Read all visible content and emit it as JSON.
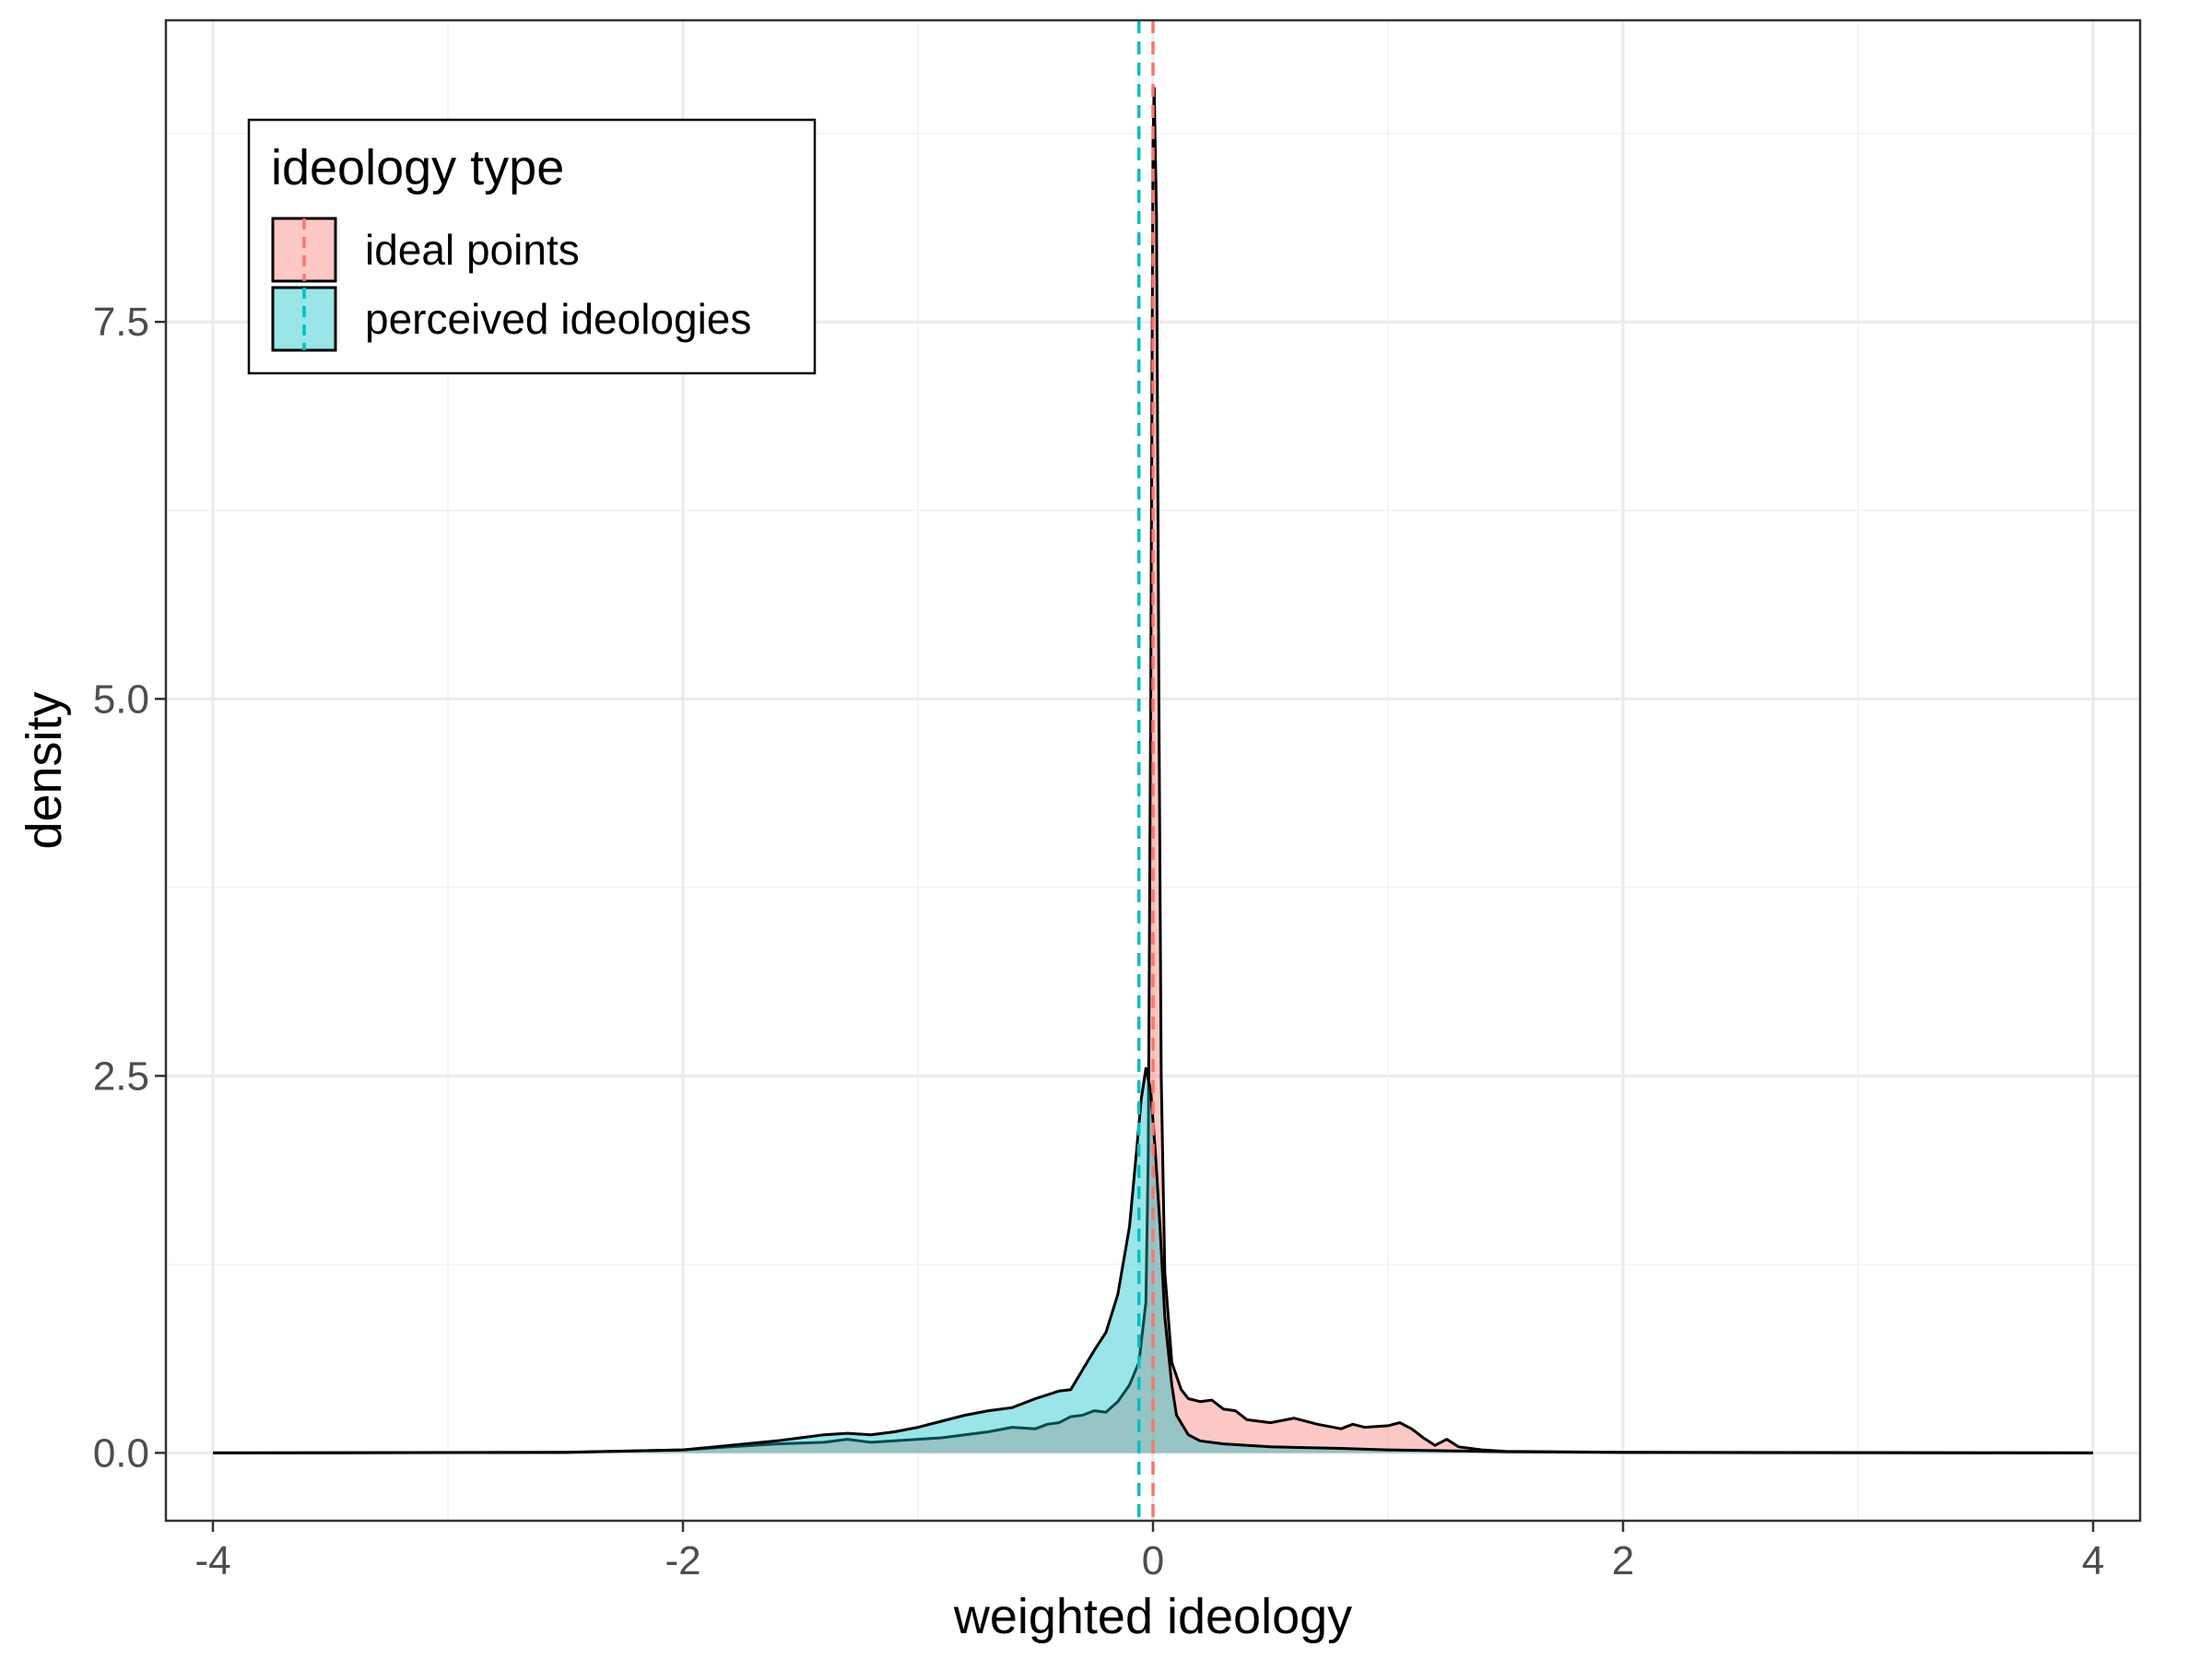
{
  "chart_data": {
    "type": "area",
    "xlabel": "weighted ideology",
    "ylabel": "density",
    "xlim": [
      -4.2,
      4.2
    ],
    "ylim": [
      -0.45,
      9.5
    ],
    "x_ticks": [
      -4,
      -2,
      0,
      2,
      4
    ],
    "x_tick_labels": [
      "-4",
      "-2",
      "0",
      "2",
      "4"
    ],
    "y_ticks": [
      0,
      2.5,
      5,
      7.5
    ],
    "y_tick_labels": [
      "0.0",
      "2.5",
      "5.0",
      "7.5"
    ],
    "grid": true,
    "legend": {
      "title": "ideology type",
      "placement": "top-left",
      "entries": [
        "ideal points",
        "perceived ideologies"
      ]
    },
    "series": [
      {
        "name": "ideal points",
        "color": "#F8766D",
        "mean_line": 0.0,
        "points": [
          [
            -4.0,
            0.0
          ],
          [
            -2.5,
            0.003
          ],
          [
            -2.0,
            0.02
          ],
          [
            -1.8,
            0.04
          ],
          [
            -1.6,
            0.06
          ],
          [
            -1.5,
            0.065
          ],
          [
            -1.4,
            0.07
          ],
          [
            -1.3,
            0.09
          ],
          [
            -1.25,
            0.08
          ],
          [
            -1.2,
            0.07
          ],
          [
            -1.1,
            0.08
          ],
          [
            -1.0,
            0.09
          ],
          [
            -0.9,
            0.1
          ],
          [
            -0.8,
            0.12
          ],
          [
            -0.7,
            0.14
          ],
          [
            -0.6,
            0.17
          ],
          [
            -0.5,
            0.16
          ],
          [
            -0.45,
            0.19
          ],
          [
            -0.4,
            0.2
          ],
          [
            -0.35,
            0.24
          ],
          [
            -0.3,
            0.25
          ],
          [
            -0.25,
            0.28
          ],
          [
            -0.2,
            0.27
          ],
          [
            -0.15,
            0.34
          ],
          [
            -0.1,
            0.45
          ],
          [
            -0.06,
            0.6
          ],
          [
            -0.03,
            1.0
          ],
          [
            -0.02,
            2.0
          ],
          [
            -0.01,
            5.0
          ],
          [
            0.0,
            8.7
          ],
          [
            0.005,
            9.05
          ],
          [
            0.015,
            8.2
          ],
          [
            0.025,
            5.0
          ],
          [
            0.035,
            2.5
          ],
          [
            0.05,
            1.2
          ],
          [
            0.08,
            0.6
          ],
          [
            0.12,
            0.42
          ],
          [
            0.15,
            0.36
          ],
          [
            0.2,
            0.34
          ],
          [
            0.25,
            0.35
          ],
          [
            0.3,
            0.29
          ],
          [
            0.35,
            0.28
          ],
          [
            0.4,
            0.22
          ],
          [
            0.5,
            0.2
          ],
          [
            0.6,
            0.23
          ],
          [
            0.7,
            0.19
          ],
          [
            0.8,
            0.16
          ],
          [
            0.85,
            0.19
          ],
          [
            0.9,
            0.17
          ],
          [
            1.0,
            0.18
          ],
          [
            1.05,
            0.2
          ],
          [
            1.1,
            0.16
          ],
          [
            1.15,
            0.1
          ],
          [
            1.2,
            0.05
          ],
          [
            1.25,
            0.09
          ],
          [
            1.3,
            0.04
          ],
          [
            1.4,
            0.02
          ],
          [
            1.5,
            0.01
          ],
          [
            2.0,
            0.004
          ],
          [
            3.0,
            0.002
          ],
          [
            4.0,
            0.0
          ]
        ]
      },
      {
        "name": "perceived ideologies",
        "color": "#00BFC4",
        "mean_line": -0.06,
        "points": [
          [
            -4.0,
            0.0
          ],
          [
            -2.5,
            0.004
          ],
          [
            -2.0,
            0.02
          ],
          [
            -1.8,
            0.05
          ],
          [
            -1.6,
            0.08
          ],
          [
            -1.5,
            0.1
          ],
          [
            -1.4,
            0.12
          ],
          [
            -1.3,
            0.13
          ],
          [
            -1.2,
            0.12
          ],
          [
            -1.1,
            0.14
          ],
          [
            -1.0,
            0.17
          ],
          [
            -0.9,
            0.21
          ],
          [
            -0.8,
            0.25
          ],
          [
            -0.7,
            0.28
          ],
          [
            -0.6,
            0.3
          ],
          [
            -0.5,
            0.36
          ],
          [
            -0.4,
            0.41
          ],
          [
            -0.35,
            0.42
          ],
          [
            -0.3,
            0.55
          ],
          [
            -0.25,
            0.68
          ],
          [
            -0.2,
            0.8
          ],
          [
            -0.15,
            1.05
          ],
          [
            -0.1,
            1.5
          ],
          [
            -0.07,
            2.0
          ],
          [
            -0.05,
            2.35
          ],
          [
            -0.03,
            2.55
          ],
          [
            -0.01,
            2.4
          ],
          [
            0.01,
            2.0
          ],
          [
            0.03,
            1.5
          ],
          [
            0.05,
            0.9
          ],
          [
            0.08,
            0.45
          ],
          [
            0.1,
            0.25
          ],
          [
            0.15,
            0.12
          ],
          [
            0.2,
            0.08
          ],
          [
            0.3,
            0.06
          ],
          [
            0.5,
            0.04
          ],
          [
            0.8,
            0.03
          ],
          [
            1.0,
            0.02
          ],
          [
            1.2,
            0.015
          ],
          [
            1.5,
            0.008
          ],
          [
            2.0,
            0.003
          ],
          [
            3.0,
            0.001
          ],
          [
            4.0,
            0.0
          ]
        ]
      }
    ]
  }
}
